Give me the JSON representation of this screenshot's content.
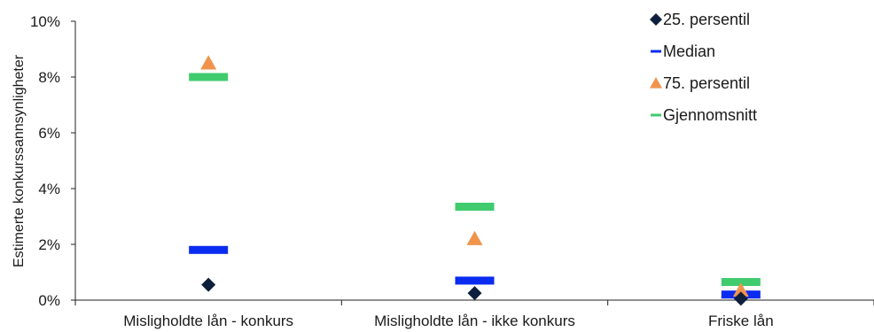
{
  "chart_data": {
    "type": "scatter",
    "ylabel": "Estimerte konkurssannsynligheter",
    "ylim": [
      0,
      10
    ],
    "yticks": [
      0,
      2,
      4,
      6,
      8,
      10
    ],
    "ytick_labels": [
      "0%",
      "2%",
      "4%",
      "6%",
      "8%",
      "10%"
    ],
    "categories": [
      "Misligholdte lån - konkurs",
      "Misligholdte lån - ikke konkurs",
      "Friske lån"
    ],
    "series": [
      {
        "name": "25. persentil",
        "marker": "diamond",
        "color": "#0d1f3c",
        "values": [
          0.55,
          0.25,
          0.05
        ]
      },
      {
        "name": "Median",
        "marker": "dash",
        "color": "#0a2bf0",
        "values": [
          1.8,
          0.7,
          0.2
        ]
      },
      {
        "name": "75. persentil",
        "marker": "triangle",
        "color": "#f0944d",
        "values": [
          8.5,
          2.2,
          0.35
        ]
      },
      {
        "name": "Gjennomsnitt",
        "marker": "dash",
        "color": "#3fcb6e",
        "values": [
          8.0,
          3.35,
          0.65
        ]
      }
    ],
    "legend_position": "top-right",
    "grid": false
  }
}
